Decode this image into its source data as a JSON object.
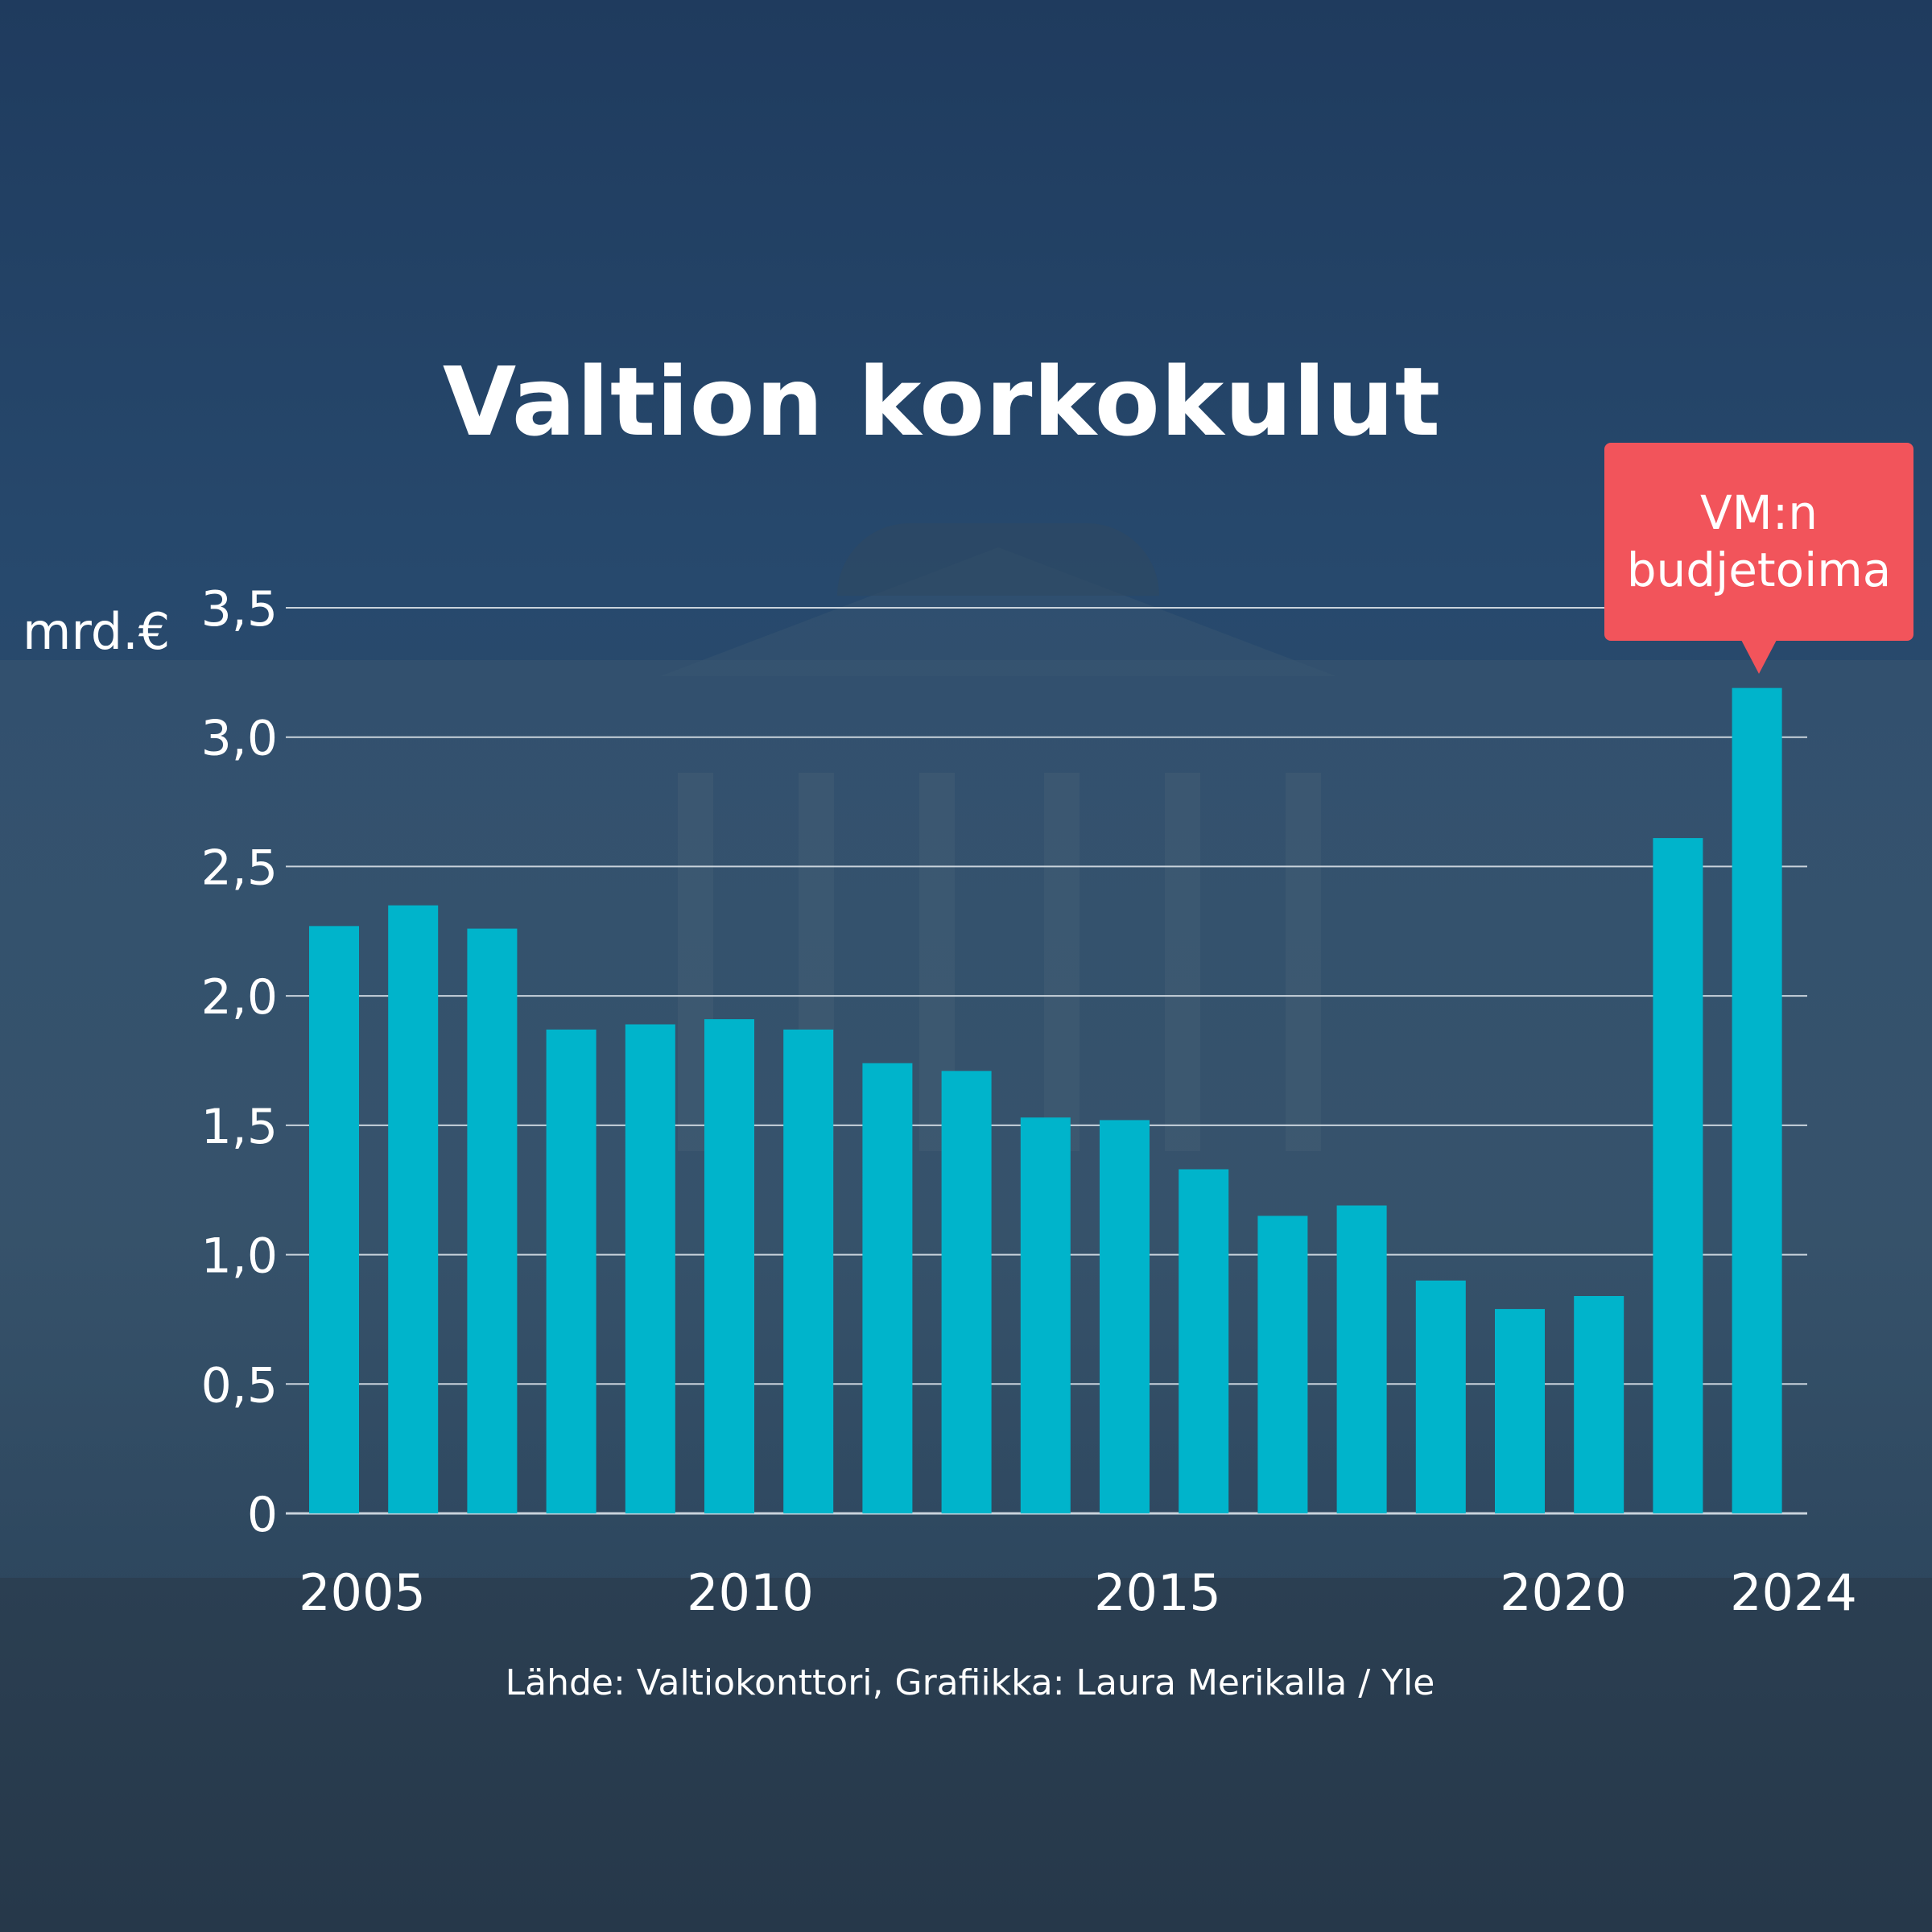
{
  "title": "Valtion korkokulut",
  "unit": "mrd.€",
  "source": "Lähde: Valtiokonttori, Grafiikka: Laura Merikalla / Yle",
  "annotation": {
    "line1": "VM:n",
    "line2": "budjetoima"
  },
  "colors": {
    "bar": "#00b4cb",
    "annotation": "#f2545b",
    "grid": "#c9d3dc",
    "text": "#ffffff"
  },
  "chart_data": {
    "type": "bar",
    "title": "Valtion korkokulut",
    "ylabel": "mrd.€",
    "ylim": [
      0,
      3.5
    ],
    "yticks": [
      "0",
      "0,5",
      "1,0",
      "1,5",
      "2,0",
      "2,5",
      "3,0",
      "3,5"
    ],
    "ytick_values": [
      0,
      0.5,
      1.0,
      1.5,
      2.0,
      2.5,
      3.0,
      3.5
    ],
    "categories": [
      "2005",
      "2006",
      "2007",
      "2008",
      "2009",
      "2010",
      "2011",
      "2012",
      "2013",
      "2014",
      "2015",
      "2016",
      "2017",
      "2018",
      "2019",
      "2020",
      "2021",
      "2022",
      "2023",
      "2024"
    ],
    "xtick_labels": [
      "2005",
      "2010",
      "2015",
      "2020",
      "2024"
    ],
    "values": [
      2.27,
      2.35,
      2.26,
      1.87,
      1.89,
      1.91,
      1.87,
      1.74,
      1.71,
      1.53,
      1.52,
      1.33,
      1.15,
      1.19,
      0.9,
      0.79,
      0.84,
      2.61,
      3.19,
      3.19
    ],
    "grid": true,
    "annotation_for": "2024"
  }
}
